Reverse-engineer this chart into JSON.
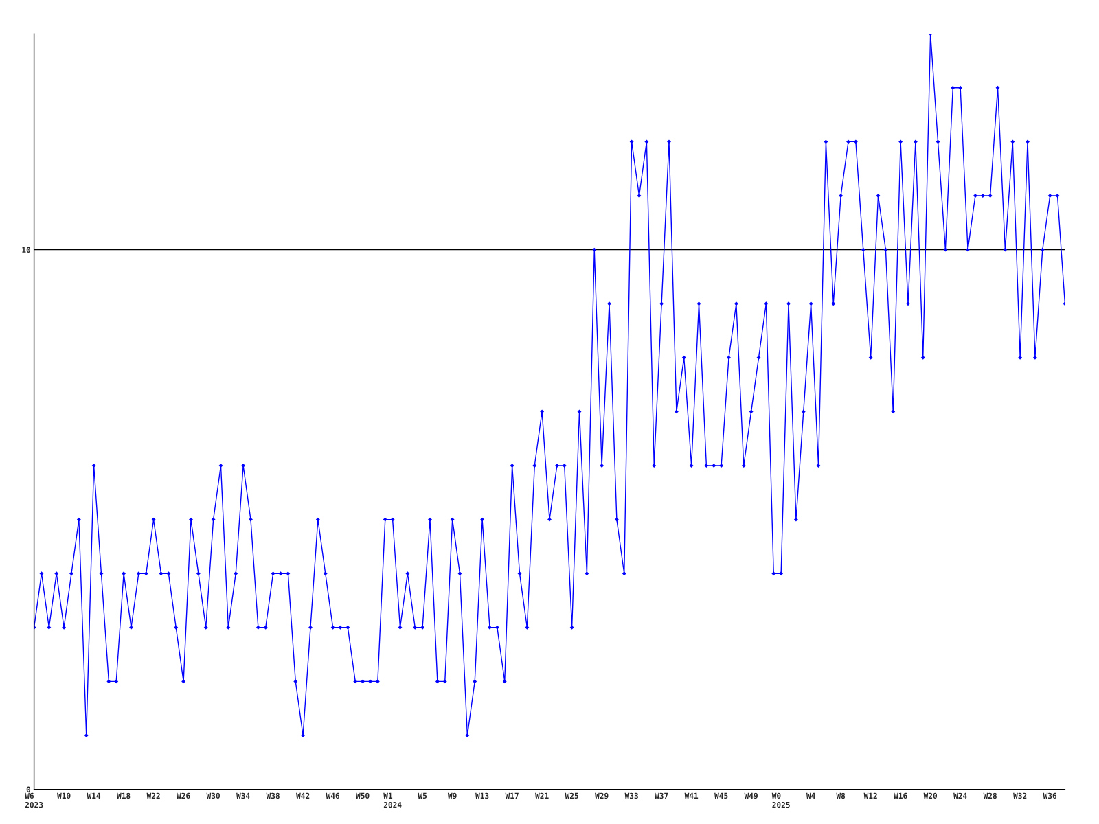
{
  "chart_data": {
    "type": "line",
    "categories": [
      "W6\n2023",
      null,
      null,
      null,
      "W10",
      null,
      null,
      null,
      "W14",
      null,
      null,
      null,
      "W18",
      null,
      null,
      null,
      "W22",
      null,
      null,
      null,
      "W26",
      null,
      null,
      null,
      "W30",
      null,
      null,
      null,
      "W34",
      null,
      null,
      null,
      "W38",
      null,
      null,
      null,
      "W42",
      null,
      null,
      null,
      "W46",
      null,
      null,
      null,
      "W50",
      null,
      null,
      null,
      "W1\n2024",
      null,
      null,
      null,
      "W5",
      null,
      null,
      null,
      "W9",
      null,
      null,
      null,
      "W13",
      null,
      null,
      null,
      "W17",
      null,
      null,
      null,
      "W21",
      null,
      null,
      null,
      "W25",
      null,
      null,
      null,
      "W29",
      null,
      null,
      null,
      "W33",
      null,
      null,
      null,
      "W37",
      null,
      null,
      null,
      "W41",
      null,
      null,
      null,
      "W45",
      null,
      null,
      null,
      "W49",
      null,
      null,
      null,
      "W0\n2025",
      null,
      null,
      null,
      "W4",
      null,
      null,
      null,
      "W8",
      null,
      null,
      null,
      "W12",
      null,
      null,
      null,
      "W16",
      null,
      null,
      null,
      "W20",
      null,
      null,
      null,
      "W24",
      null,
      null,
      null,
      "W28",
      null,
      null,
      null,
      "W32",
      null,
      null,
      null,
      "W36",
      null,
      null
    ],
    "series": [
      {
        "color": "#0000ff",
        "values": [
          3,
          4,
          3,
          4,
          3,
          4,
          5,
          1,
          6,
          4,
          2,
          2,
          4,
          3,
          4,
          4,
          5,
          4,
          4,
          3,
          2,
          5,
          4,
          3,
          5,
          6,
          3,
          4,
          6,
          5,
          3,
          3,
          4,
          4,
          4,
          2,
          1,
          3,
          5,
          4,
          3,
          3,
          3,
          2,
          2,
          2,
          2,
          5,
          5,
          3,
          4,
          3,
          3,
          5,
          2,
          2,
          5,
          4,
          1,
          2,
          5,
          3,
          3,
          2,
          6,
          4,
          3,
          6,
          7,
          5,
          6,
          6,
          3,
          7,
          4,
          10,
          6,
          9,
          5,
          4,
          12,
          11,
          12,
          6,
          9,
          12,
          7,
          8,
          6,
          9,
          6,
          6,
          6,
          8,
          9,
          6,
          7,
          8,
          9,
          4,
          4,
          9,
          5,
          7,
          9,
          6,
          12,
          9,
          11,
          12,
          12,
          10,
          8,
          11,
          10,
          7,
          12,
          9,
          12,
          8,
          14,
          12,
          10,
          13,
          13,
          10,
          11,
          11,
          11,
          13,
          10,
          12,
          8,
          12,
          8,
          10,
          11,
          11,
          9
        ]
      }
    ],
    "ylim": [
      0,
      14
    ],
    "yticks": [
      0,
      10
    ],
    "grid": "y",
    "marker": "diamond",
    "line_style": "solid",
    "legend": false
  }
}
